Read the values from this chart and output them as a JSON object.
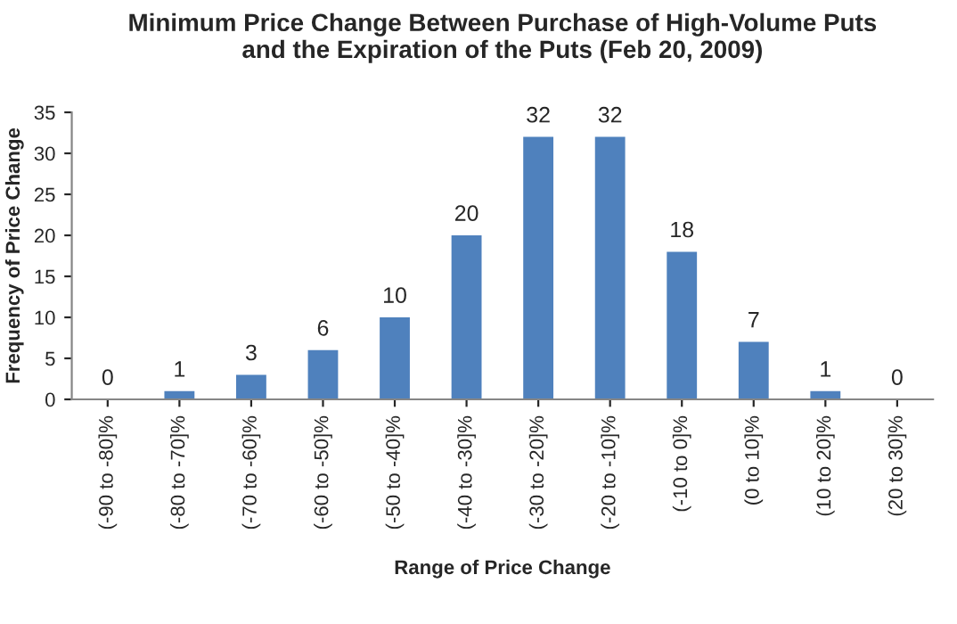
{
  "chart_data": {
    "type": "bar",
    "title": "Minimum Price Change Between Purchase of High-Volume Puts\nand the Expiration of the Puts (Feb 20, 2009)",
    "xlabel": "Range of Price Change",
    "ylabel": "Frequency of Price Change",
    "categories": [
      "(-90 to -80]%",
      "(-80 to -70]%",
      "(-70 to -60]%",
      "(-60 to -50]%",
      "(-50 to -40]%",
      "(-40 to -30]%",
      "(-30 to -20]%",
      "(-20 to -10]%",
      "(-10 to 0]%",
      "(0 to 10]%",
      "(10 to 20]%",
      "(20 to 30]%"
    ],
    "values": [
      0,
      1,
      3,
      6,
      10,
      20,
      32,
      32,
      18,
      7,
      1,
      0
    ],
    "color": "#4f81bd",
    "ylim": [
      0,
      35
    ],
    "yticks": [
      0,
      5,
      10,
      15,
      20,
      25,
      30,
      35
    ],
    "data_labels": true,
    "grid": false,
    "legend": false
  }
}
